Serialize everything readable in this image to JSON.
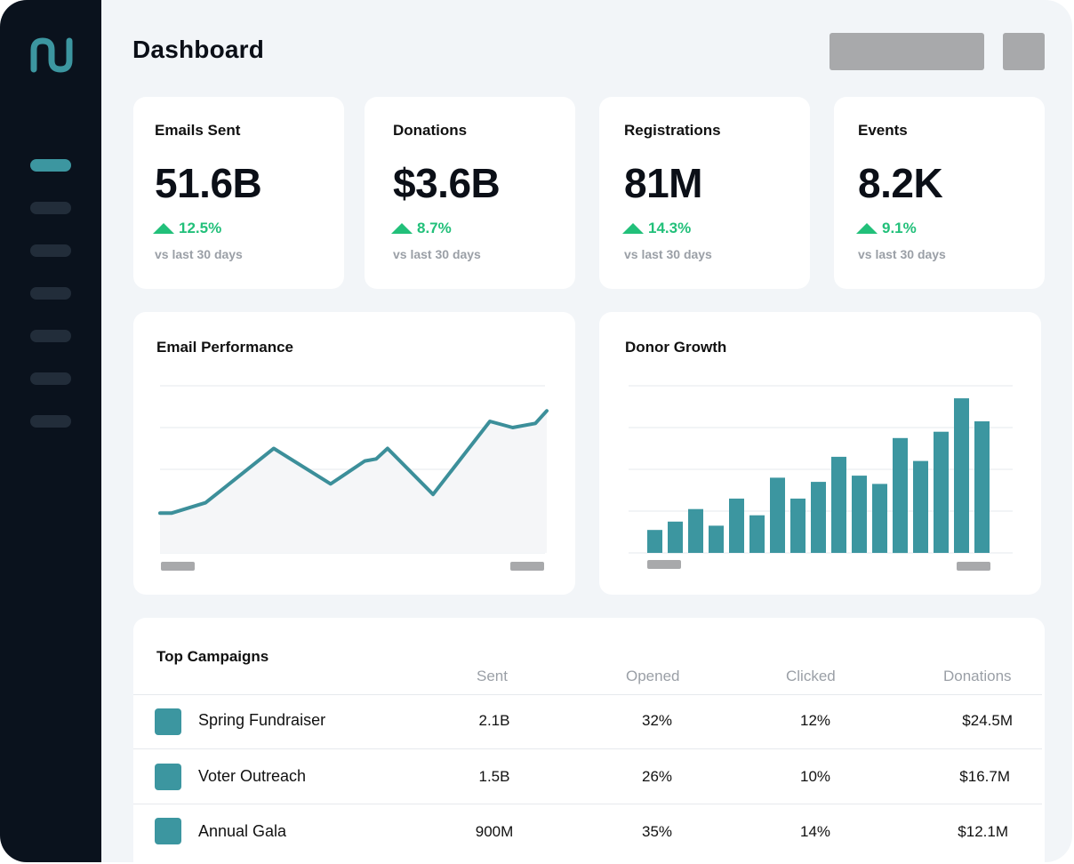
{
  "colors": {
    "sidebar_bg": "#0a121d",
    "accent": "#3c96a0",
    "positive": "#22c07a",
    "page_bg": "#f2f5f8"
  },
  "sidebar": {
    "logo_icon": "brand-logo-icon",
    "items": [
      "nav-1",
      "nav-2",
      "nav-3",
      "nav-4",
      "nav-5",
      "nav-6",
      "nav-7"
    ]
  },
  "header": {
    "title": "Dashboard"
  },
  "kpis": [
    {
      "title": "Emails Sent",
      "value": "51.6B",
      "delta": "12.5%",
      "period": "vs last 30 days"
    },
    {
      "title": "Donations",
      "value": "$3.6B",
      "delta": "8.7%",
      "period": "vs last 30 days"
    },
    {
      "title": "Registrations",
      "value": "81M",
      "delta": "14.3%",
      "period": "vs last 30 days"
    },
    {
      "title": "Events",
      "value": "8.2K",
      "delta": "9.1%",
      "period": "vs last 30 days"
    }
  ],
  "charts": {
    "email_performance": {
      "title": "Email Performance"
    },
    "donor_growth": {
      "title": "Donor Growth"
    }
  },
  "chart_data": [
    {
      "type": "area",
      "title": "Email Performance",
      "x": [
        0,
        1,
        4,
        10,
        15,
        18,
        19,
        20,
        24,
        29,
        31,
        33,
        34
      ],
      "values": [
        9.5,
        9.5,
        12,
        25,
        16.5,
        22,
        22.5,
        25,
        14,
        31.5,
        30,
        31,
        34
      ],
      "ylim": [
        0,
        40
      ],
      "grid": true
    },
    {
      "type": "bar",
      "title": "Donor Growth",
      "values": [
        11,
        15,
        21,
        13,
        26,
        18,
        36,
        26,
        34,
        46,
        37,
        33,
        55,
        44,
        58,
        74,
        63
      ],
      "ylim": [
        0,
        80
      ],
      "grid": true
    }
  ],
  "table": {
    "title": "Top Campaigns",
    "columns": [
      "Sent",
      "Opened",
      "Clicked",
      "Donations"
    ],
    "rows": [
      {
        "name": "Spring Fundraiser",
        "sent": "2.1B",
        "opened": "32%",
        "clicked": "12%",
        "donations": "$24.5M"
      },
      {
        "name": "Voter Outreach",
        "sent": "1.5B",
        "opened": "26%",
        "clicked": "10%",
        "donations": "$16.7M"
      },
      {
        "name": "Annual Gala",
        "sent": "900M",
        "opened": "35%",
        "clicked": "14%",
        "donations": "$12.1M"
      }
    ]
  }
}
